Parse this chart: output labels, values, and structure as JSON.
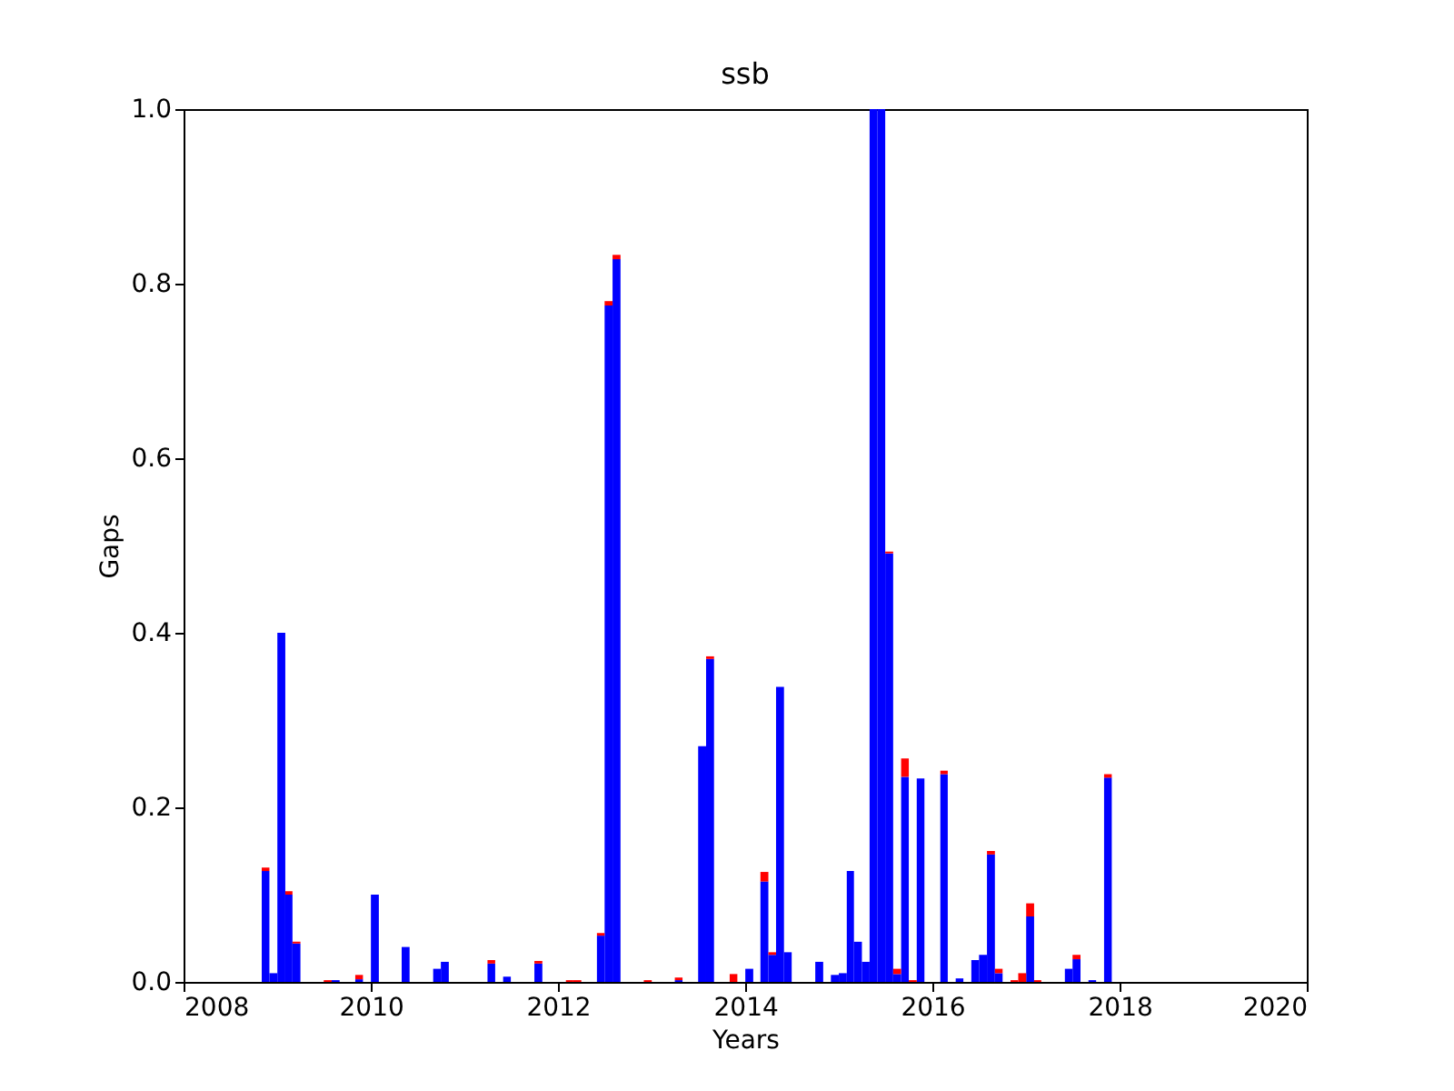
{
  "chart_data": {
    "type": "bar",
    "title": "ssb",
    "xlabel": "Years",
    "ylabel": "Gaps",
    "stacked": true,
    "grid": false,
    "x": [
      "2008-11",
      "2008-12",
      "2009-01",
      "2009-02",
      "2009-03",
      "2009-07",
      "2009-08",
      "2009-11",
      "2010-01",
      "2010-05",
      "2010-09",
      "2010-10",
      "2011-04",
      "2011-06",
      "2011-10",
      "2012-02",
      "2012-03",
      "2012-06",
      "2012-07",
      "2012-08",
      "2012-12",
      "2013-04",
      "2013-07",
      "2013-08",
      "2013-11",
      "2014-01",
      "2014-03",
      "2014-04",
      "2014-05",
      "2014-06",
      "2014-10",
      "2014-12",
      "2015-01",
      "2015-02",
      "2015-03",
      "2015-04",
      "2015-05",
      "2015-06",
      "2015-07",
      "2015-08",
      "2015-09",
      "2015-10",
      "2015-11",
      "2016-02",
      "2016-04",
      "2016-06",
      "2016-07",
      "2016-08",
      "2016-09",
      "2016-11",
      "2016-12",
      "2017-01",
      "2017-02",
      "2017-06",
      "2017-07",
      "2017-09",
      "2017-11"
    ],
    "series": [
      {
        "color": "#0000ff",
        "values": [
          0.127,
          0.01,
          0.4,
          0.1,
          0.044,
          null,
          0.002,
          0.003,
          0.1,
          0.04,
          0.015,
          0.023,
          0.021,
          0.006,
          0.021,
          null,
          null,
          0.053,
          0.775,
          0.828,
          null,
          0.002,
          0.27,
          0.37,
          null,
          0.015,
          0.115,
          0.031,
          0.338,
          0.034,
          0.023,
          0.008,
          0.01,
          0.127,
          0.046,
          0.023,
          1.0,
          1.0,
          0.491,
          0.009,
          0.235,
          null,
          0.233,
          0.238,
          0.004,
          0.025,
          0.031,
          0.146,
          0.01,
          null,
          null,
          0.075,
          null,
          0.015,
          0.026,
          0.002,
          0.234
        ]
      },
      {
        "color": "#ff0000",
        "values": [
          0.004,
          null,
          null,
          0.004,
          0.002,
          0.002,
          null,
          0.005,
          null,
          null,
          null,
          null,
          0.004,
          null,
          0.003,
          0.002,
          0.002,
          0.003,
          0.005,
          0.005,
          0.002,
          0.003,
          null,
          0.003,
          0.009,
          null,
          0.011,
          0.003,
          null,
          null,
          null,
          null,
          null,
          null,
          null,
          null,
          null,
          null,
          0.002,
          0.006,
          0.021,
          0.002,
          null,
          0.004,
          null,
          null,
          null,
          0.004,
          0.005,
          0.002,
          0.01,
          0.015,
          0.002,
          null,
          0.005,
          null,
          0.004
        ]
      }
    ],
    "xlim": [
      "2008",
      "2020"
    ],
    "xticks": [
      "2008",
      "2010",
      "2012",
      "2014",
      "2016",
      "2018",
      "2020"
    ],
    "ylim": [
      0,
      1.0
    ],
    "yticks": [
      {
        "value": 0,
        "label": "0.0"
      },
      {
        "value": 0.2,
        "label": "0.2"
      },
      {
        "value": 0.4,
        "label": "0.4"
      },
      {
        "value": 0.6,
        "label": "0.6"
      },
      {
        "value": 0.8,
        "label": "0.8"
      },
      {
        "value": 1.0,
        "label": "1.0"
      }
    ]
  }
}
